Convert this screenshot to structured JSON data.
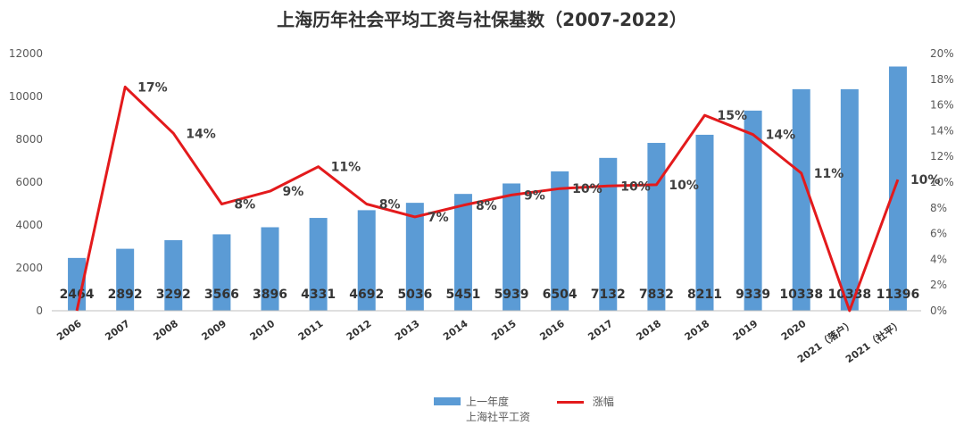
{
  "chart_data": {
    "type": "bar",
    "title": "上海历年社会平均工资与社保基数（2007-2022）",
    "categories": [
      "2006",
      "2007",
      "2008",
      "2009",
      "2010",
      "2011",
      "2012",
      "2013",
      "2014",
      "2015",
      "2016",
      "2017",
      "2018",
      "2018",
      "2019",
      "2020",
      "2021（落户）",
      "2021（社平）"
    ],
    "series": [
      {
        "name": "上一年度上海社平工资",
        "type": "bar",
        "axis": "left",
        "color": "#5B9BD5",
        "values": [
          2464,
          2892,
          3292,
          3566,
          3896,
          4331,
          4692,
          5036,
          5451,
          5939,
          6504,
          7132,
          7832,
          8211,
          9339,
          10338,
          10338,
          11396
        ],
        "labels": [
          "2464",
          "2892",
          "3292",
          "3566",
          "3896",
          "4331",
          "4692",
          "5036",
          "5451",
          "5939",
          "6504",
          "7132",
          "7832",
          "8211",
          "9339",
          "10338",
          "10338",
          "11396"
        ]
      },
      {
        "name": "涨幅",
        "type": "line",
        "axis": "right",
        "color": "#E31A1C",
        "values": [
          0,
          17.4,
          13.8,
          8.3,
          9.3,
          11.2,
          8.3,
          7.3,
          8.2,
          9.0,
          9.5,
          9.7,
          9.8,
          15.2,
          13.7,
          10.7,
          0,
          10.2
        ],
        "labels": [
          "",
          "17%",
          "14%",
          "8%",
          "9%",
          "11%",
          "8%",
          "7%",
          "8%",
          "9%",
          "10%",
          "10%",
          "10%",
          "15%",
          "14%",
          "11%",
          "",
          "10%"
        ]
      }
    ],
    "y_left": {
      "min": 0,
      "max": 12000,
      "step": 2000,
      "ticks": [
        "0",
        "2000",
        "4000",
        "6000",
        "8000",
        "10000",
        "12000"
      ]
    },
    "y_right": {
      "min": 0,
      "max": 20,
      "step": 2,
      "ticks": [
        "0%",
        "2%",
        "4%",
        "6%",
        "8%",
        "10%",
        "12%",
        "14%",
        "16%",
        "18%",
        "20%"
      ]
    },
    "legend": {
      "placement": "bottom-center",
      "bar_label_line1": "上一年度",
      "bar_label_line2": "上海社平工资",
      "line_label": "涨幅"
    },
    "grid": false
  }
}
